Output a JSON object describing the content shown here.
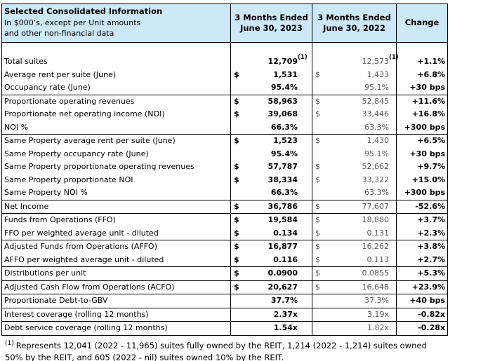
{
  "colors": {
    "header_bg": "#cde8f7",
    "prior_year_text": "#5a5a5a",
    "border": "#000000"
  },
  "header": {
    "title": "Selected Consolidated Information",
    "subtitle1": "In $000’s, except per Unit amounts",
    "subtitle2": "and other non-financial data",
    "col2023_line1": "3 Months Ended",
    "col2023_line2": "June 30, 2023",
    "col2022_line1": "3 Months Ended",
    "col2022_line2": "June 30, 2022",
    "change_label": "Change"
  },
  "table": {
    "sections": [
      {
        "rows": [
          {
            "label": "",
            "d1": "",
            "v1": "",
            "d2": "",
            "v2": "",
            "chg": ""
          },
          {
            "label": "Total suites",
            "d1": "",
            "v1": "12,709",
            "s1": "(1)",
            "d2": "",
            "v2": "12,573",
            "s2": "(1)",
            "chg": "+1.1%"
          },
          {
            "label": "Average rent per suite (June)",
            "d1": "$",
            "v1": "1,531",
            "d2": "$",
            "v2": "1,433",
            "chg": "+6.8%"
          },
          {
            "label": "Occupancy rate (June)",
            "d1": "",
            "v1": "95.4%",
            "d2": "",
            "v2": "95.1%",
            "chg": "+30 bps"
          }
        ]
      },
      {
        "rows": [
          {
            "label": "Proportionate operating revenues",
            "d1": "$",
            "v1": "58,963",
            "d2": "$",
            "v2": "52,845",
            "chg": "+11.6%"
          },
          {
            "label": "Proportionate net operating income (NOI)",
            "d1": "$",
            "v1": "39,068",
            "d2": "$",
            "v2": "33,446",
            "chg": "+16.8%"
          },
          {
            "label": "NOI %",
            "d1": "",
            "v1": "66.3%",
            "d2": "",
            "v2": "63.3%",
            "chg": "+300 bps"
          }
        ]
      },
      {
        "rows": [
          {
            "label": "Same Property average rent per suite (June)",
            "d1": "$",
            "v1": "1,523",
            "d2": "$",
            "v2": "1,430",
            "chg": "+6.5%"
          },
          {
            "label": "Same Property occupancy rate (June)",
            "d1": "",
            "v1": "95.4%",
            "d2": "",
            "v2": "95.1%",
            "chg": "+30 bps"
          },
          {
            "label": "Same Property proportionate operating revenues",
            "d1": "$",
            "v1": "57,787",
            "d2": "$",
            "v2": "52,662",
            "chg": "+9.7%"
          },
          {
            "label": "Same Property proportionate NOI",
            "d1": "$",
            "v1": "38,334",
            "d2": "$",
            "v2": "33,322",
            "chg": "+15.0%"
          },
          {
            "label": "Same Property NOI %",
            "d1": "",
            "v1": "66.3%",
            "d2": "",
            "v2": "63.3%",
            "chg": "+300 bps"
          }
        ]
      },
      {
        "rows": [
          {
            "label": "Net Income",
            "d1": "$",
            "v1": "36,786",
            "d2": "$",
            "v2": "77,607",
            "chg": "-52.6%"
          }
        ]
      },
      {
        "rows": [
          {
            "label": "Funds from Operations (FFO)",
            "d1": "$",
            "v1": "19,584",
            "d2": "$",
            "v2": "18,880",
            "chg": "+3.7%"
          },
          {
            "label": "FFO per weighted average unit - diluted",
            "d1": "$",
            "v1": "0.134",
            "d2": "$",
            "v2": "0.131",
            "chg": "+2.3%"
          }
        ]
      },
      {
        "rows": [
          {
            "label": "Adjusted Funds from Operations (AFFO)",
            "d1": "$",
            "v1": "16,877",
            "d2": "$",
            "v2": "16,262",
            "chg": "+3.8%"
          },
          {
            "label": "AFFO per weighted average unit - diluted",
            "d1": "$",
            "v1": "0.116",
            "d2": "$",
            "v2": "0.113",
            "chg": "+2.7%"
          }
        ]
      },
      {
        "rows": [
          {
            "label": "Distributions per unit",
            "d1": "$",
            "v1": "0.0900",
            "d2": "$",
            "v2": "0.0855",
            "chg": "+5.3%"
          }
        ]
      },
      {
        "rows": [
          {
            "label": "Adjusted Cash Flow from Operations (ACFO)",
            "d1": "$",
            "v1": "20,627",
            "d2": "$",
            "v2": "16,648",
            "chg": "+23.9%"
          }
        ]
      },
      {
        "rows": [
          {
            "label": "Proportionate Debt-to-GBV",
            "d1": "",
            "v1": "37.7%",
            "d2": "",
            "v2": "37.3%",
            "chg": "+40 bps"
          }
        ]
      },
      {
        "rows": [
          {
            "label": "Interest coverage (rolling 12 months)",
            "d1": "",
            "v1": "2.37x",
            "d2": "",
            "v2": "3.19x",
            "chg": "-0.82x"
          }
        ]
      },
      {
        "rows": [
          {
            "label": "Debt service coverage (rolling 12 months)",
            "d1": "",
            "v1": "1.54x",
            "d2": "",
            "v2": "1.82x",
            "chg": "-0.28x"
          }
        ]
      }
    ]
  },
  "footnote": {
    "marker": "(1)",
    "line1": "Represents 12,041 (2022 - 11,965) suites fully owned by the REIT, 1,214 (2022 - 1,214) suites owned",
    "line2": "50% by the REIT, and 605 (2022 - nil) suites owned 10% by the REIT."
  }
}
